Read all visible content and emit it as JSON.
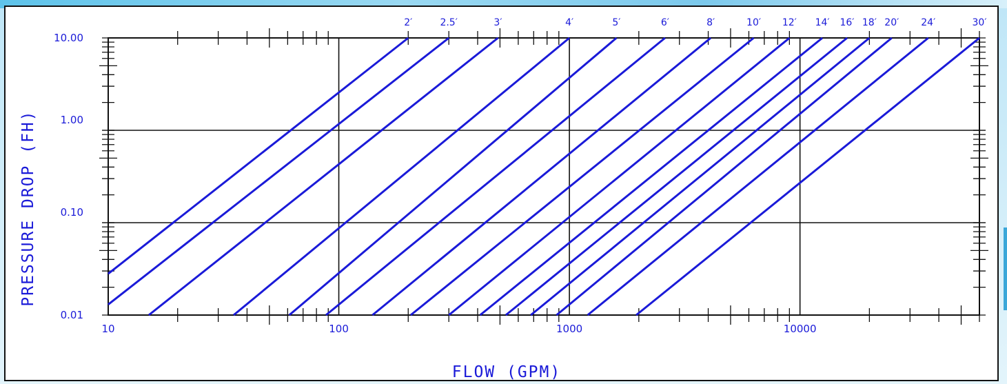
{
  "chart_data": {
    "type": "line",
    "xlabel": "FLOW (GPM)",
    "ylabel": "PRESSURE DROP (FH)",
    "x_scale": "log",
    "y_scale": "log",
    "xlim": [
      10,
      60000
    ],
    "ylim": [
      0.01,
      10
    ],
    "x_tick_labels": [
      "10",
      "100",
      "1000",
      "10000"
    ],
    "y_tick_labels": [
      "0.01",
      "0.10",
      "1.00",
      "10.00"
    ],
    "grid": true,
    "legend_position": "top",
    "line_color": "#1a1ad8",
    "series": [
      {
        "name": "2′",
        "x": [
          10,
          200
        ],
        "y": [
          0.028,
          10
        ]
      },
      {
        "name": "2.5′",
        "x": [
          10,
          300
        ],
        "y": [
          0.013,
          10
        ]
      },
      {
        "name": "3′",
        "x": [
          15,
          490
        ],
        "y": [
          0.01,
          10
        ]
      },
      {
        "name": "4′",
        "x": [
          35,
          1000
        ],
        "y": [
          0.01,
          10
        ]
      },
      {
        "name": "5′",
        "x": [
          61,
          1600
        ],
        "y": [
          0.01,
          10
        ]
      },
      {
        "name": "6′",
        "x": [
          88,
          2600
        ],
        "y": [
          0.01,
          10
        ]
      },
      {
        "name": "8′",
        "x": [
          140,
          4100
        ],
        "y": [
          0.01,
          10
        ]
      },
      {
        "name": "10′",
        "x": [
          205,
          6300
        ],
        "y": [
          0.01,
          10
        ]
      },
      {
        "name": "12′",
        "x": [
          300,
          9000
        ],
        "y": [
          0.01,
          10
        ]
      },
      {
        "name": "14′",
        "x": [
          410,
          12500
        ],
        "y": [
          0.01,
          10
        ]
      },
      {
        "name": "16′",
        "x": [
          530,
          16000
        ],
        "y": [
          0.01,
          10
        ]
      },
      {
        "name": "18′",
        "x": [
          680,
          20000
        ],
        "y": [
          0.01,
          10
        ]
      },
      {
        "name": "20′",
        "x": [
          880,
          25000
        ],
        "y": [
          0.01,
          10
        ]
      },
      {
        "name": "24′",
        "x": [
          1200,
          36000
        ],
        "y": [
          0.01,
          10
        ]
      },
      {
        "name": "30′",
        "x": [
          1950,
          60000
        ],
        "y": [
          0.01,
          10
        ]
      }
    ]
  }
}
